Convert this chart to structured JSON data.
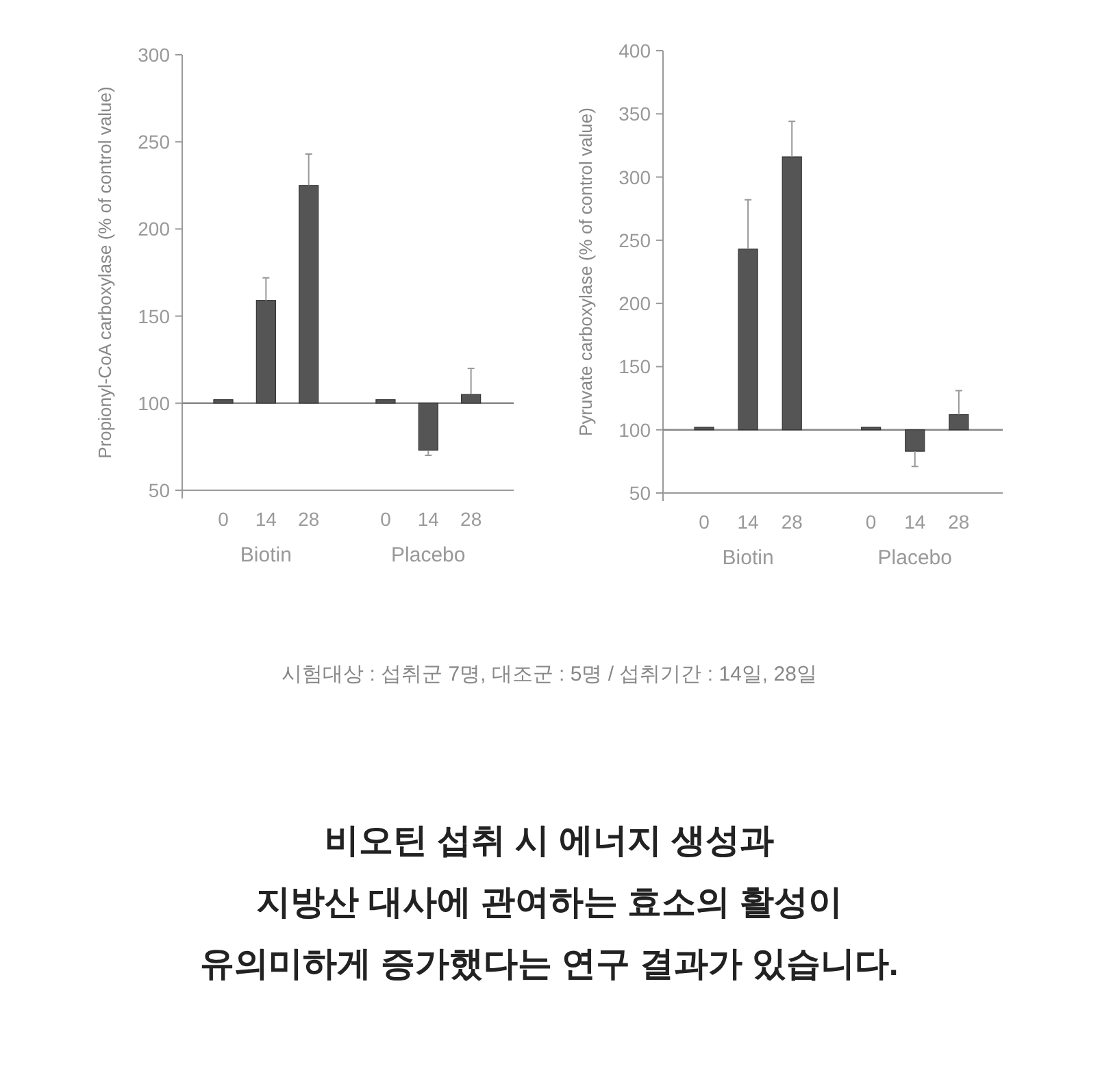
{
  "chart_data": [
    {
      "type": "bar",
      "ylabel": "Propionyl-CoA carboxylase (% of control value)",
      "categories": [
        "0",
        "14",
        "28",
        "0",
        "14",
        "28"
      ],
      "base": [
        100,
        100,
        100,
        100,
        100,
        100
      ],
      "values": [
        2,
        59,
        125,
        2,
        -27,
        5
      ],
      "errors": [
        null,
        [
          159,
          172
        ],
        [
          225,
          243
        ],
        null,
        [
          70,
          73
        ],
        [
          105,
          120
        ]
      ],
      "color": "#555555",
      "ylim": [
        50,
        300
      ],
      "yticks": [
        50,
        100,
        150,
        200,
        250,
        300
      ],
      "ref_lines": [
        {
          "axis": "y",
          "value": 100,
          "color": "#888888"
        }
      ],
      "annotations": [
        "Biotin",
        "Placebo"
      ]
    },
    {
      "type": "bar",
      "ylabel": "Pyruvate carboxylase (% of control value)",
      "categories": [
        "0",
        "14",
        "28",
        "0",
        "14",
        "28"
      ],
      "base": [
        100,
        100,
        100,
        100,
        100,
        100
      ],
      "values": [
        2,
        143,
        216,
        2,
        -17,
        12
      ],
      "errors": [
        null,
        [
          243,
          282
        ],
        [
          316,
          344
        ],
        null,
        [
          71,
          83
        ],
        [
          112,
          131
        ]
      ],
      "color": "#555555",
      "ylim": [
        50,
        400
      ],
      "yticks": [
        50,
        100,
        150,
        200,
        250,
        300,
        350,
        400
      ],
      "ref_lines": [
        {
          "axis": "y",
          "value": 100,
          "color": "#888888"
        }
      ],
      "annotations": [
        "Biotin",
        "Placebo"
      ]
    },
    {
      "type": "other",
      "annotations": [
        "시험대상 : 섭취군 7명, 대조군 : 5명 / 섭취기간 : 14일, 28일",
        "비오틴 섭취 시 에너지 생성과",
        "지방산 대사에 관여하는 효소의 활성이",
        "유의미하게 증가했다는 연구 결과가 있습니다."
      ]
    }
  ]
}
